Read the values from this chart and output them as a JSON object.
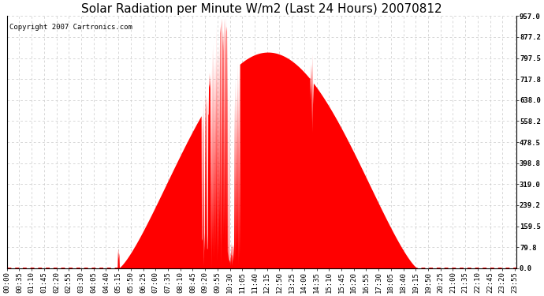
{
  "title": "Solar Radiation per Minute W/m2 (Last 24 Hours) 20070812",
  "copyright": "Copyright 2007 Cartronics.com",
  "bg_color": "#ffffff",
  "fill_color": "#ff0000",
  "dashed_line_color": "#ff0000",
  "grid_color": "#c8c8c8",
  "yticks": [
    0.0,
    79.8,
    159.5,
    239.2,
    319.0,
    398.8,
    478.5,
    558.2,
    638.0,
    717.8,
    797.5,
    877.2,
    957.0
  ],
  "ymin": 0.0,
  "ymax": 957.0,
  "title_fontsize": 11,
  "copyright_fontsize": 6.5,
  "tick_fontsize": 6.5,
  "num_minutes": 1440,
  "tick_interval": 35
}
